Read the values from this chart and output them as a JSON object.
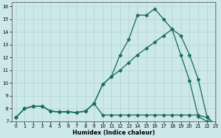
{
  "xlabel": "Humidex (Indice chaleur)",
  "bg_color": "#cce8e8",
  "grid_color": "#b8d8d8",
  "line_color": "#1a6e60",
  "xlim": [
    -0.5,
    23
  ],
  "ylim": [
    7,
    16.3
  ],
  "xticks": [
    0,
    1,
    2,
    3,
    4,
    5,
    6,
    7,
    8,
    9,
    10,
    11,
    12,
    13,
    14,
    15,
    16,
    17,
    18,
    19,
    20,
    21,
    22,
    23
  ],
  "yticks": [
    7,
    8,
    9,
    10,
    11,
    12,
    13,
    14,
    15,
    16
  ],
  "line1_x": [
    0,
    1,
    2,
    3,
    4,
    5,
    6,
    7,
    8,
    9,
    10,
    11,
    12,
    13,
    14,
    15,
    16,
    17,
    18,
    19,
    20,
    21,
    22,
    23
  ],
  "line1_y": [
    7.3,
    8.0,
    8.2,
    8.2,
    7.8,
    7.75,
    7.75,
    7.7,
    7.8,
    8.4,
    9.9,
    10.5,
    11.0,
    11.6,
    12.2,
    12.7,
    13.2,
    13.7,
    14.2,
    13.7,
    12.2,
    10.3,
    7.4,
    6.7
  ],
  "line2_x": [
    0,
    1,
    2,
    3,
    4,
    5,
    6,
    7,
    8,
    9,
    10,
    11,
    12,
    13,
    14,
    15,
    16,
    17,
    18,
    19,
    20,
    21,
    22,
    23
  ],
  "line2_y": [
    7.3,
    8.0,
    8.2,
    8.2,
    7.8,
    7.75,
    7.75,
    7.7,
    7.8,
    8.4,
    9.9,
    10.5,
    12.2,
    13.4,
    15.3,
    15.3,
    15.8,
    15.0,
    14.2,
    12.2,
    10.2,
    7.4,
    7.0,
    6.7
  ],
  "line3_x": [
    0,
    1,
    2,
    3,
    4,
    5,
    6,
    7,
    8,
    9,
    10,
    11,
    12,
    13,
    14,
    15,
    16,
    17,
    18,
    19,
    20,
    21,
    22,
    23
  ],
  "line3_y": [
    7.3,
    8.0,
    8.2,
    8.2,
    7.8,
    7.75,
    7.75,
    7.7,
    7.8,
    8.4,
    7.5,
    7.5,
    7.5,
    7.5,
    7.5,
    7.5,
    7.5,
    7.5,
    7.5,
    7.5,
    7.5,
    7.5,
    7.3,
    6.7
  ],
  "marker": "D",
  "markersize": 2.2,
  "linewidth": 1.0
}
